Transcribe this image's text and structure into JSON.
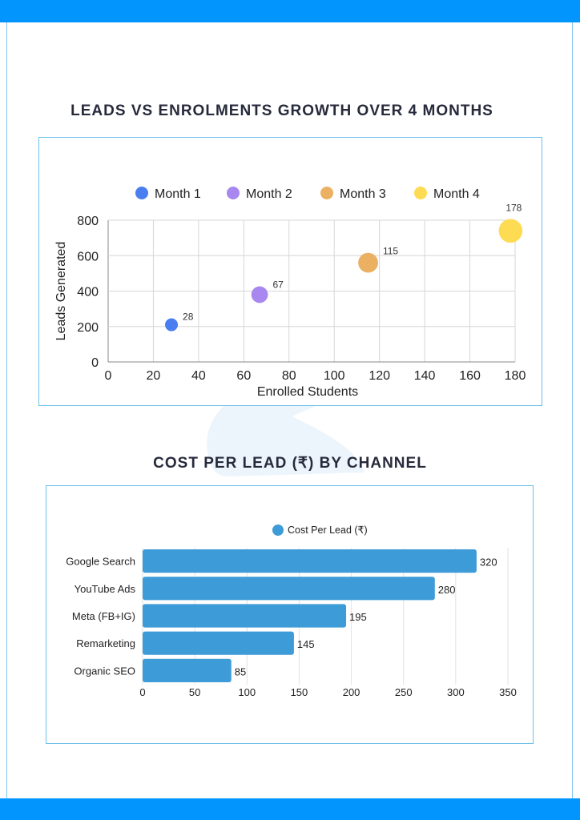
{
  "colors": {
    "brand_bar": "#0295fd",
    "card_border": "#6cc0e8",
    "title_text": "#262a3b",
    "bar_fill": "#3d9bd8"
  },
  "sections": {
    "scatter_title": "LEADS VS ENROLMENTS GROWTH OVER 4 MONTHS",
    "bar_title": "COST PER LEAD (₹) BY CHANNEL"
  },
  "chart_data": [
    {
      "type": "scatter",
      "title": "LEADS VS ENROLMENTS GROWTH OVER 4 MONTHS",
      "xlabel": "Enrolled Students",
      "ylabel": "Leads Generated",
      "xlim": [
        0,
        180
      ],
      "ylim": [
        0,
        800
      ],
      "xticks": [
        "0",
        "20",
        "40",
        "60",
        "80",
        "100",
        "120",
        "140",
        "160",
        "180"
      ],
      "yticks": [
        "0",
        "200",
        "400",
        "600",
        "800"
      ],
      "grid": true,
      "legend_position": "top",
      "series": [
        {
          "name": "Month 1",
          "color": "#4a7ef0",
          "x": 28,
          "y": 210,
          "label": "28",
          "size": 1
        },
        {
          "name": "Month 2",
          "color": "#a887f0",
          "x": 67,
          "y": 380,
          "label": "67",
          "size": 1.3
        },
        {
          "name": "Month 3",
          "color": "#ecb062",
          "x": 115,
          "y": 560,
          "label": "115",
          "size": 1.55
        },
        {
          "name": "Month 4",
          "color": "#fddb52",
          "x": 178,
          "y": 740,
          "label": "178",
          "size": 1.85
        }
      ]
    },
    {
      "type": "bar",
      "orientation": "horizontal",
      "title": "COST PER LEAD (₹) BY CHANNEL",
      "legend": "Cost Per Lead (₹)",
      "legend_position": "top",
      "categories": [
        "Google Search",
        "YouTube Ads",
        "Meta (FB+IG)",
        "Remarketing",
        "Organic SEO"
      ],
      "values": [
        320,
        280,
        195,
        145,
        85
      ],
      "xlim": [
        0,
        350
      ],
      "xticks": [
        "0",
        "50",
        "100",
        "150",
        "200",
        "250",
        "300",
        "350"
      ],
      "grid": true,
      "color": "#3d9bd8"
    }
  ]
}
